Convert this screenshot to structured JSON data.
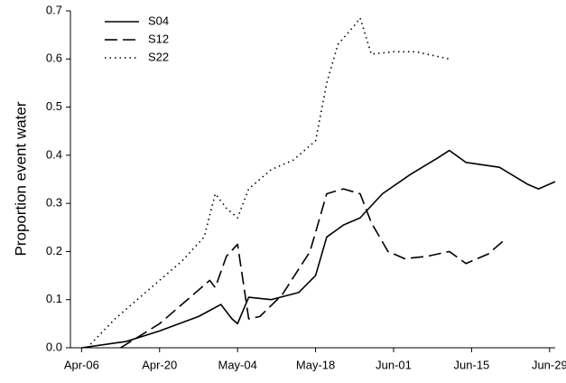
{
  "chart_data": {
    "type": "line",
    "y_label": "Proportion event water",
    "xlim": [
      "Apr-04",
      "Jun-30"
    ],
    "xticks": [
      "Apr-06",
      "Apr-20",
      "May-04",
      "May-18",
      "Jun-01",
      "Jun-15",
      "Jun-29"
    ],
    "ylim": [
      0,
      0.7
    ],
    "yticks": [
      {
        "value": 0,
        "label": "0.0"
      },
      {
        "value": 0.1,
        "label": "0.1"
      },
      {
        "value": 0.2,
        "label": "0.2"
      },
      {
        "value": 0.3,
        "label": "0.3"
      },
      {
        "value": 0.4,
        "label": "0.4"
      },
      {
        "value": 0.5,
        "label": "0.5"
      },
      {
        "value": 0.6,
        "label": "0.6"
      },
      {
        "value": 0.7,
        "label": "0.7"
      }
    ],
    "legend": "upper left",
    "series": [
      {
        "name": "S04",
        "color": "#000000",
        "style": "solid",
        "x": [
          "Apr-06",
          "Apr-14",
          "Apr-20",
          "Apr-27",
          "May-01",
          "May-03",
          "May-04",
          "May-06",
          "May-10",
          "May-15",
          "May-18",
          "May-20",
          "May-23",
          "May-26",
          "May-30",
          "Jun-04",
          "Jun-09",
          "Jun-11",
          "Jun-14",
          "Jun-20",
          "Jun-25",
          "Jun-27",
          "Jun-30"
        ],
        "values": [
          0,
          0.013,
          0.035,
          0.065,
          0.09,
          0.06,
          0.05,
          0.105,
          0.1,
          0.115,
          0.15,
          0.23,
          0.255,
          0.27,
          0.32,
          0.36,
          0.395,
          0.41,
          0.385,
          0.375,
          0.34,
          0.33,
          0.345
        ]
      },
      {
        "name": "S12",
        "color": "#000000",
        "style": "dashed",
        "x": [
          "Apr-13",
          "Apr-20",
          "Apr-27",
          "Apr-29",
          "Apr-30",
          "May-02",
          "May-04",
          "May-06",
          "May-08",
          "May-12",
          "May-17",
          "May-20",
          "May-23",
          "May-26",
          "May-28",
          "May-31",
          "Jun-03",
          "Jun-07",
          "Jun-11",
          "Jun-14",
          "Jun-18",
          "Jun-21"
        ],
        "values": [
          0,
          0.05,
          0.12,
          0.14,
          0.125,
          0.19,
          0.215,
          0.06,
          0.065,
          0.11,
          0.2,
          0.32,
          0.33,
          0.32,
          0.26,
          0.2,
          0.185,
          0.19,
          0.2,
          0.175,
          0.195,
          0.225
        ]
      },
      {
        "name": "S22",
        "color": "#000000",
        "style": "dotted",
        "x": [
          "Apr-07",
          "Apr-12",
          "Apr-18",
          "Apr-24",
          "Apr-28",
          "Apr-30",
          "May-02",
          "May-04",
          "May-06",
          "May-10",
          "May-14",
          "May-18",
          "May-20",
          "May-22",
          "May-25",
          "May-26",
          "May-28",
          "Jun-01",
          "Jun-05",
          "Jun-09",
          "Jun-11"
        ],
        "values": [
          0,
          0.06,
          0.12,
          0.18,
          0.23,
          0.32,
          0.29,
          0.27,
          0.33,
          0.37,
          0.39,
          0.43,
          0.55,
          0.63,
          0.67,
          0.685,
          0.61,
          0.615,
          0.615,
          0.605,
          0.6
        ]
      }
    ]
  }
}
